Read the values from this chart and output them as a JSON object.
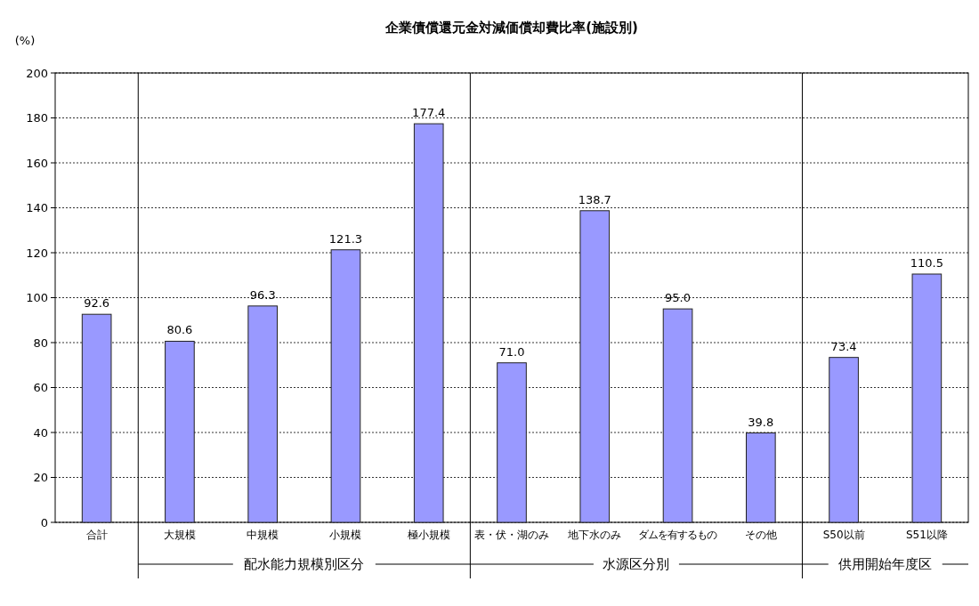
{
  "chart_data": {
    "type": "bar",
    "title": "企業債償還元金対減価償却費比率(施設別)",
    "ylabel": "(%)",
    "categories": [
      "合計",
      "大規模",
      "中規模",
      "小規模",
      "極小規模",
      "表・伏・湖のみ",
      "地下水のみ",
      "ダムを有するもの",
      "その他",
      "S50以前",
      "S51以降"
    ],
    "values": [
      92.6,
      80.6,
      96.3,
      121.3,
      177.4,
      71.0,
      138.7,
      95.0,
      39.8,
      73.4,
      110.5
    ],
    "value_labels": [
      "92.6",
      "80.6",
      "96.3",
      "121.3",
      "177.4",
      "71.0",
      "138.7",
      "95.0",
      "39.8",
      "73.4",
      "110.5"
    ],
    "color": "#9999ff",
    "ylim": [
      0,
      200
    ],
    "yticks": [
      0,
      20,
      40,
      60,
      80,
      100,
      120,
      140,
      160,
      180,
      200
    ],
    "grid": "y",
    "annotations": [
      "配水能力規模別区分",
      "水源区分別",
      "供用開始年度区"
    ]
  }
}
